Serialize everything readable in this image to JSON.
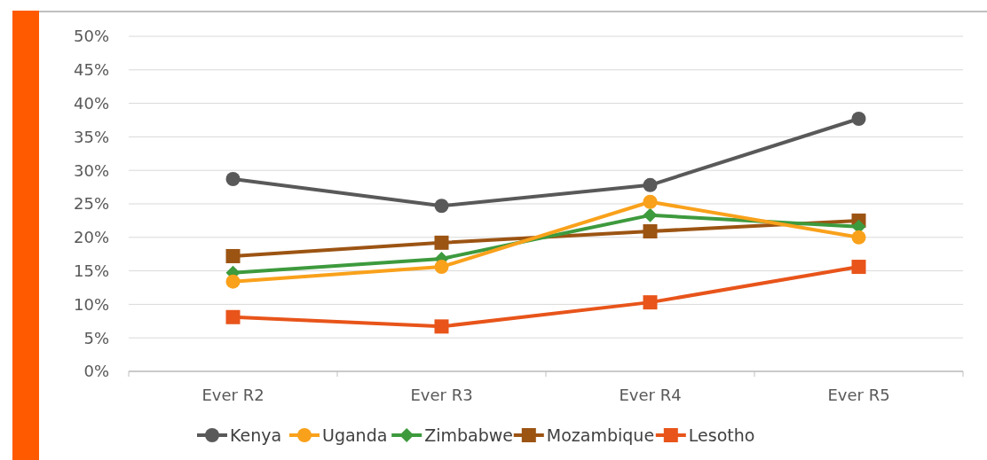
{
  "chart_data": {
    "type": "line",
    "categories": [
      "Ever R2",
      "Ever R3",
      "Ever R4",
      "Ever R5"
    ],
    "series": [
      {
        "name": "Kenya",
        "color": "#595959",
        "marker": "circle",
        "values": [
          28.7,
          24.7,
          27.8,
          37.7
        ]
      },
      {
        "name": "Uganda",
        "color": "#f9a11b",
        "marker": "circle",
        "values": [
          13.4,
          15.6,
          25.3,
          20.0
        ]
      },
      {
        "name": "Zimbabwe",
        "color": "#3d9a3d",
        "marker": "diamond",
        "values": [
          14.7,
          16.8,
          23.3,
          21.6
        ]
      },
      {
        "name": "Mozambique",
        "color": "#9c5413",
        "marker": "square",
        "values": [
          17.2,
          19.2,
          20.9,
          22.5
        ]
      },
      {
        "name": "Lesotho",
        "color": "#e8541a",
        "marker": "square",
        "values": [
          8.1,
          6.7,
          10.3,
          15.6
        ]
      }
    ],
    "ylim": [
      0,
      50
    ],
    "yticks": [
      {
        "value": 0,
        "label": "0%"
      },
      {
        "value": 5,
        "label": "5%"
      },
      {
        "value": 10,
        "label": "10%"
      },
      {
        "value": 15,
        "label": "15%"
      },
      {
        "value": 20,
        "label": "20%"
      },
      {
        "value": 25,
        "label": "25%"
      },
      {
        "value": 30,
        "label": "30%"
      },
      {
        "value": 35,
        "label": "35%"
      },
      {
        "value": 40,
        "label": "40%"
      },
      {
        "value": 45,
        "label": "45%"
      },
      {
        "value": 50,
        "label": "50%"
      }
    ],
    "grid": "y",
    "legend": "bottom"
  }
}
